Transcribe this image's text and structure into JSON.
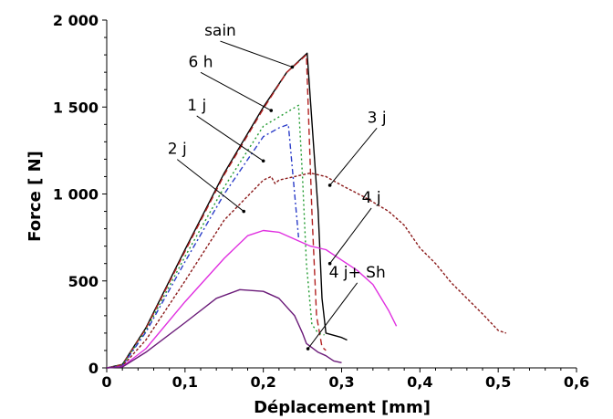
{
  "chart_data": {
    "type": "line",
    "xlabel": "Déplacement [mm]",
    "ylabel": "Force [ N]",
    "xlim": [
      0,
      0.6
    ],
    "ylim": [
      0,
      2000
    ],
    "x_ticks": [
      "0",
      "0,1",
      "0,2",
      "0,3",
      "0,4",
      "0,5",
      "0,6"
    ],
    "y_ticks": [
      "0",
      "500",
      "1 000",
      "1 500",
      "2 000"
    ],
    "grid": false,
    "legend": "none",
    "series": [
      {
        "name": "sain",
        "color": "#000000",
        "dash": "",
        "label": {
          "x": 0.145,
          "y": 1900,
          "tx": 0.237,
          "ty": 1730
        },
        "points": [
          [
            0,
            0
          ],
          [
            0.02,
            20
          ],
          [
            0.05,
            230
          ],
          [
            0.1,
            680
          ],
          [
            0.15,
            1120
          ],
          [
            0.2,
            1500
          ],
          [
            0.23,
            1700
          ],
          [
            0.256,
            1810
          ],
          [
            0.27,
            900
          ],
          [
            0.275,
            400
          ],
          [
            0.28,
            200
          ],
          [
            0.3,
            175
          ],
          [
            0.307,
            160
          ]
        ]
      },
      {
        "name": "6 h",
        "color": "#b22222",
        "dash": "7,4",
        "label": {
          "x": 0.12,
          "y": 1720,
          "tx": 0.21,
          "ty": 1480
        },
        "points": [
          [
            0,
            0
          ],
          [
            0.02,
            18
          ],
          [
            0.05,
            225
          ],
          [
            0.1,
            670
          ],
          [
            0.15,
            1110
          ],
          [
            0.2,
            1490
          ],
          [
            0.23,
            1700
          ],
          [
            0.255,
            1800
          ],
          [
            0.262,
            900
          ],
          [
            0.268,
            300
          ],
          [
            0.275,
            120
          ],
          [
            0.28,
            100
          ]
        ]
      },
      {
        "name": "1 j",
        "color": "#1f9a2e",
        "dash": "2,3",
        "label": {
          "x": 0.115,
          "y": 1470,
          "tx": 0.2,
          "ty": 1190
        },
        "points": [
          [
            0,
            0
          ],
          [
            0.02,
            15
          ],
          [
            0.05,
            215
          ],
          [
            0.1,
            640
          ],
          [
            0.15,
            1040
          ],
          [
            0.2,
            1390
          ],
          [
            0.23,
            1470
          ],
          [
            0.245,
            1510
          ],
          [
            0.25,
            1100
          ],
          [
            0.255,
            600
          ],
          [
            0.262,
            250
          ],
          [
            0.27,
            200
          ],
          [
            0.278,
            190
          ]
        ]
      },
      {
        "name": "2 j",
        "color": "#2a3cc8",
        "dash": "6,3,2,3",
        "label": {
          "x": 0.09,
          "y": 1220,
          "tx": 0.175,
          "ty": 900
        },
        "points": [
          [
            0,
            0
          ],
          [
            0.02,
            12
          ],
          [
            0.05,
            205
          ],
          [
            0.1,
            610
          ],
          [
            0.15,
            1000
          ],
          [
            0.2,
            1330
          ],
          [
            0.22,
            1380
          ],
          [
            0.232,
            1400
          ],
          [
            0.24,
            1000
          ],
          [
            0.245,
            750
          ]
        ]
      },
      {
        "name": "3 j",
        "color": "#8b1a1a",
        "dash": "3,2",
        "label": {
          "x": 0.345,
          "y": 1400,
          "tx": 0.285,
          "ty": 1050
        },
        "points": [
          [
            0,
            0
          ],
          [
            0.02,
            10
          ],
          [
            0.05,
            160
          ],
          [
            0.1,
            500
          ],
          [
            0.15,
            850
          ],
          [
            0.2,
            1080
          ],
          [
            0.21,
            1100
          ],
          [
            0.215,
            1060
          ],
          [
            0.22,
            1080
          ],
          [
            0.24,
            1100
          ],
          [
            0.26,
            1120
          ],
          [
            0.28,
            1100
          ],
          [
            0.3,
            1050
          ],
          [
            0.33,
            980
          ],
          [
            0.36,
            900
          ],
          [
            0.38,
            820
          ],
          [
            0.4,
            690
          ],
          [
            0.42,
            600
          ],
          [
            0.44,
            490
          ],
          [
            0.46,
            400
          ],
          [
            0.48,
            310
          ],
          [
            0.5,
            215
          ],
          [
            0.51,
            200
          ]
        ]
      },
      {
        "name": "4 j",
        "color": "#e030e0",
        "dash": "",
        "label": {
          "x": 0.338,
          "y": 940,
          "tx": 0.285,
          "ty": 600
        },
        "points": [
          [
            0,
            0
          ],
          [
            0.02,
            8
          ],
          [
            0.05,
            110
          ],
          [
            0.1,
            380
          ],
          [
            0.15,
            630
          ],
          [
            0.18,
            760
          ],
          [
            0.2,
            790
          ],
          [
            0.22,
            780
          ],
          [
            0.24,
            740
          ],
          [
            0.26,
            700
          ],
          [
            0.28,
            680
          ],
          [
            0.3,
            620
          ],
          [
            0.32,
            560
          ],
          [
            0.34,
            480
          ],
          [
            0.36,
            330
          ],
          [
            0.37,
            240
          ]
        ]
      },
      {
        "name": "4 j+ Sh",
        "color": "#6a1a78",
        "dash": "",
        "label": {
          "x": 0.32,
          "y": 510,
          "tx": 0.257,
          "ty": 110
        },
        "points": [
          [
            0,
            0
          ],
          [
            0.02,
            5
          ],
          [
            0.05,
            90
          ],
          [
            0.1,
            260
          ],
          [
            0.14,
            400
          ],
          [
            0.17,
            450
          ],
          [
            0.2,
            440
          ],
          [
            0.22,
            400
          ],
          [
            0.24,
            300
          ],
          [
            0.25,
            200
          ],
          [
            0.255,
            140
          ],
          [
            0.27,
            90
          ],
          [
            0.28,
            70
          ],
          [
            0.29,
            40
          ],
          [
            0.3,
            30
          ]
        ]
      }
    ]
  }
}
